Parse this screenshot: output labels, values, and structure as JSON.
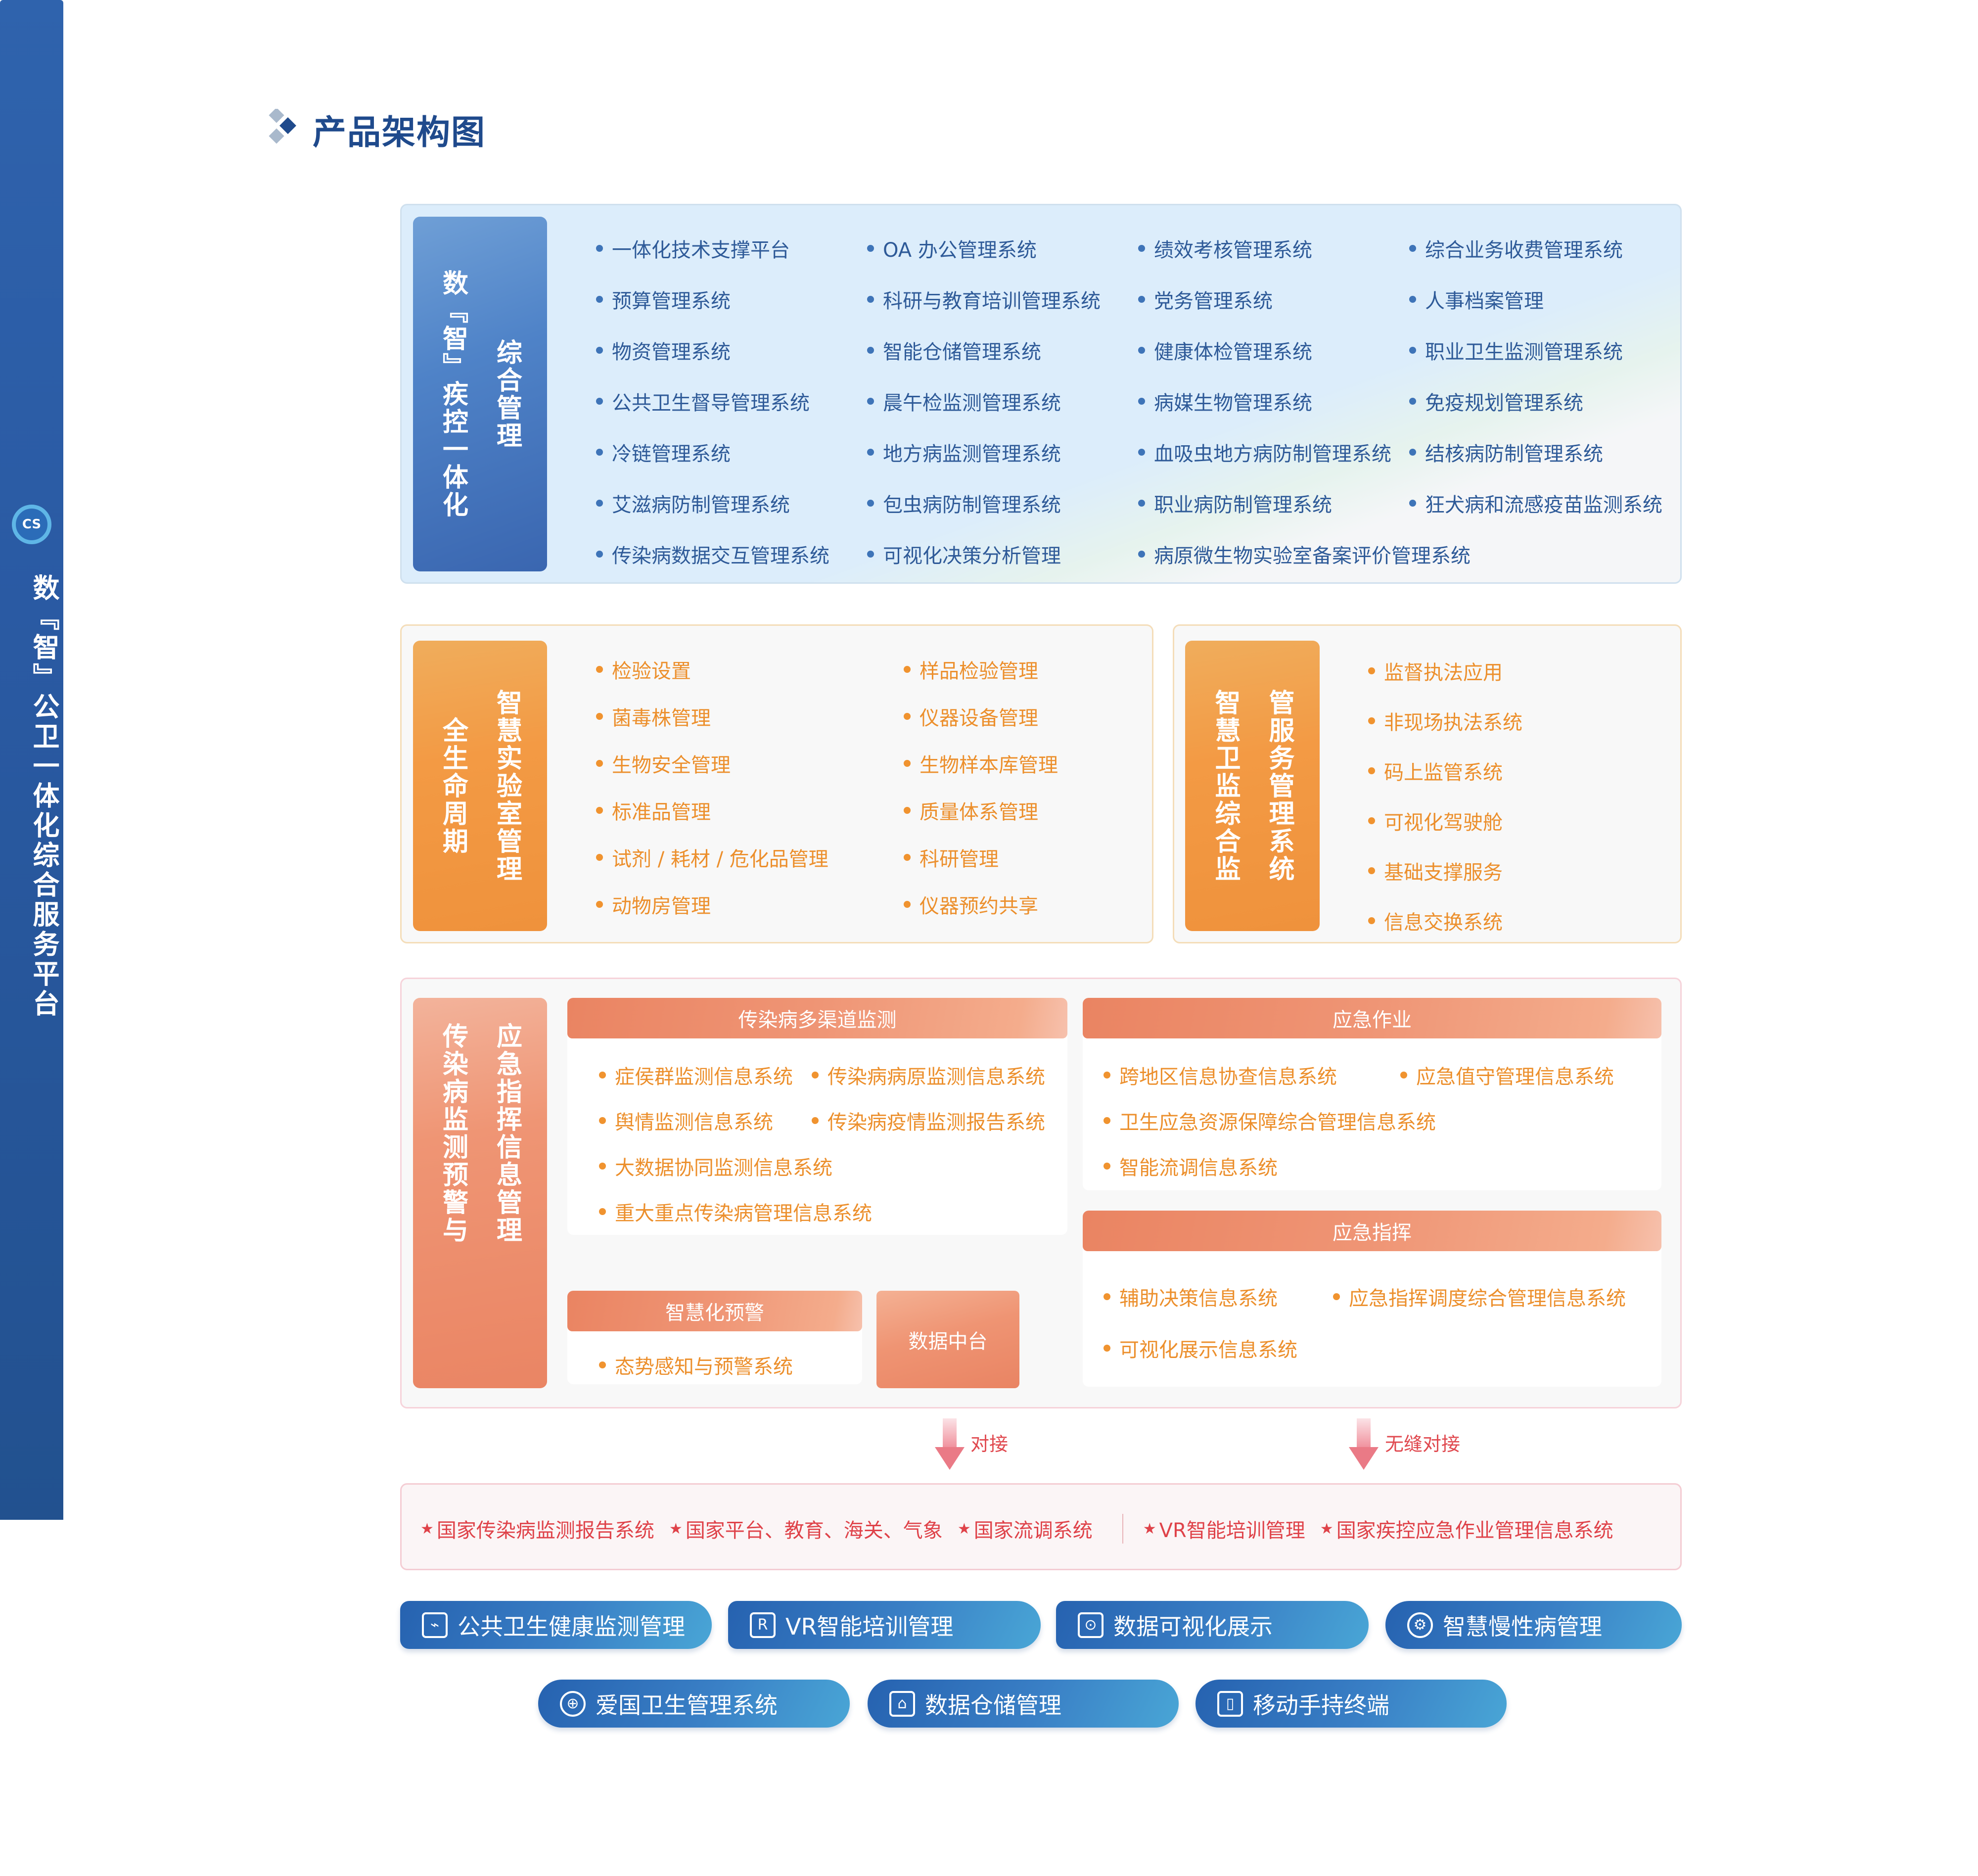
{
  "title": "产品架构图",
  "platform": {
    "title": "数『智』公卫一体化综合服务平台",
    "logo": "CS"
  },
  "colors": {
    "blue": "#2a5aa3",
    "orange": "#f39a44",
    "salmon": "#ec8a6a",
    "red": "#df4249",
    "title": "#1f4a8c"
  },
  "section1": {
    "label": [
      "数『智』疾控一体化",
      "综合管理"
    ],
    "items": [
      "一体化技术支撑平台",
      "OA 办公管理系统",
      "绩效考核管理系统",
      "综合业务收费管理系统",
      "预算管理系统",
      "科研与教育培训管理系统",
      "党务管理系统",
      "人事档案管理",
      "物资管理系统",
      "智能仓储管理系统",
      "健康体检管理系统",
      "职业卫生监测管理系统",
      "公共卫生督导管理系统",
      "晨午检监测管理系统",
      "病媒生物管理系统",
      "免疫规划管理系统",
      "冷链管理系统",
      "地方病监测管理系统",
      "血吸虫地方病防制管理系统",
      "结核病防制管理系统",
      "艾滋病防制管理系统",
      "包虫病防制管理系统",
      "职业病防制管理系统",
      "狂犬病和流感疫苗监测系统",
      "传染病数据交互管理系统",
      "可视化决策分析管理",
      "病原微生物实验室备案评价管理系统"
    ]
  },
  "section2a": {
    "label": [
      "全生命周期",
      "智慧实验室管理"
    ],
    "items": [
      "检验设置",
      "样品检验管理",
      "菌毒株管理",
      "仪器设备管理",
      "生物安全管理",
      "生物样本库管理",
      "标准品管理",
      "质量体系管理",
      "试剂 / 耗材 / 危化品管理",
      "科研管理",
      "动物房管理",
      "仪器预约共享"
    ]
  },
  "section2b": {
    "label": [
      "智慧卫监综合监",
      "管服务管理系统"
    ],
    "items": [
      "监督执法应用",
      "非现场执法系统",
      "码上监管系统",
      "可视化驾驶舱",
      "基础支撑服务",
      "信息交换系统"
    ]
  },
  "section3": {
    "label": [
      "传染病监测预警与",
      "应急指挥信息管理"
    ],
    "panels": [
      {
        "title": "传染病多渠道监测",
        "items": [
          "症侯群监测信息系统",
          "传染病病原监测信息系统",
          "舆情监测信息系统",
          "传染病疫情监测报告系统",
          "大数据协同监测信息系统",
          "",
          "重大重点传染病管理信息系统"
        ]
      },
      {
        "title": "智慧化预警",
        "items": [
          "态势感知与预警系统"
        ]
      },
      {
        "title": "应急作业",
        "items": [
          "跨地区信息协查信息系统",
          "应急值守管理信息系统",
          "卫生应急资源保障综合管理信息系统",
          "",
          "智能流调信息系统"
        ]
      },
      {
        "title": "应急指挥",
        "items": [
          "辅助决策信息系统",
          "应急指挥调度综合管理信息系统",
          "可视化展示信息系统"
        ]
      }
    ],
    "data_hub": "数据中台"
  },
  "connectors": [
    "对接",
    "无缝对接"
  ],
  "national": {
    "left": [
      "国家传染病监测报告系统",
      "国家平台、教育、海关、气象",
      "国家流调系统"
    ],
    "right": [
      "VR智能培训管理",
      "国家疾控应急作业管理信息系统"
    ]
  },
  "buttons": [
    {
      "label": "公共卫生健康监测管理",
      "icon": "monitor-icon"
    },
    {
      "label": "VR智能培训管理",
      "icon": "vr-icon"
    },
    {
      "label": "数据可视化展示",
      "icon": "chart-icon"
    },
    {
      "label": "智慧慢性病管理",
      "icon": "gear-icon"
    },
    {
      "label": "爱国卫生管理系统",
      "icon": "cross-circle-icon"
    },
    {
      "label": "数据仓储管理",
      "icon": "archive-icon"
    },
    {
      "label": "移动手持终端",
      "icon": "mobile-icon"
    }
  ]
}
